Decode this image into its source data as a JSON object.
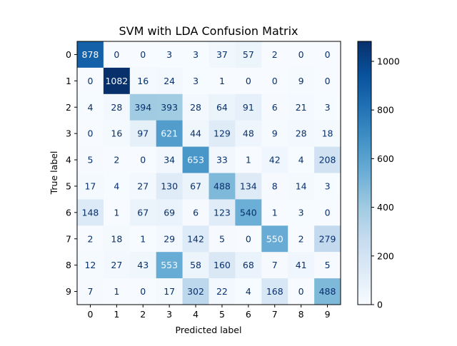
{
  "chart_data": {
    "type": "heatmap",
    "title": "SVM with LDA Confusion Matrix",
    "xlabel": "Predicted label",
    "ylabel": "True label",
    "x_categories": [
      "0",
      "1",
      "2",
      "3",
      "4",
      "5",
      "6",
      "7",
      "8",
      "9"
    ],
    "y_categories": [
      "0",
      "1",
      "2",
      "3",
      "4",
      "5",
      "6",
      "7",
      "8",
      "9"
    ],
    "values": [
      [
        878,
        0,
        0,
        3,
        3,
        37,
        57,
        2,
        0,
        0
      ],
      [
        0,
        1082,
        16,
        24,
        3,
        1,
        0,
        0,
        9,
        0
      ],
      [
        4,
        28,
        394,
        393,
        28,
        64,
        91,
        6,
        21,
        3
      ],
      [
        0,
        16,
        97,
        621,
        44,
        129,
        48,
        9,
        28,
        18
      ],
      [
        5,
        2,
        0,
        34,
        653,
        33,
        1,
        42,
        4,
        208
      ],
      [
        17,
        4,
        27,
        130,
        67,
        488,
        134,
        8,
        14,
        3
      ],
      [
        148,
        1,
        67,
        69,
        6,
        123,
        540,
        1,
        3,
        0
      ],
      [
        2,
        18,
        1,
        29,
        142,
        5,
        0,
        550,
        2,
        279
      ],
      [
        12,
        27,
        43,
        553,
        58,
        160,
        68,
        7,
        41,
        5
      ],
      [
        7,
        1,
        0,
        17,
        302,
        22,
        4,
        168,
        0,
        488
      ]
    ],
    "colormap": "Blues",
    "colorbar": {
      "range": [
        0,
        1082
      ],
      "ticks": [
        0,
        200,
        400,
        600,
        800,
        1000
      ]
    }
  },
  "colors": {
    "low": "#f7fbff",
    "high": "#08306b",
    "text_dark": "#08306b",
    "text_light": "#f7fbff"
  }
}
